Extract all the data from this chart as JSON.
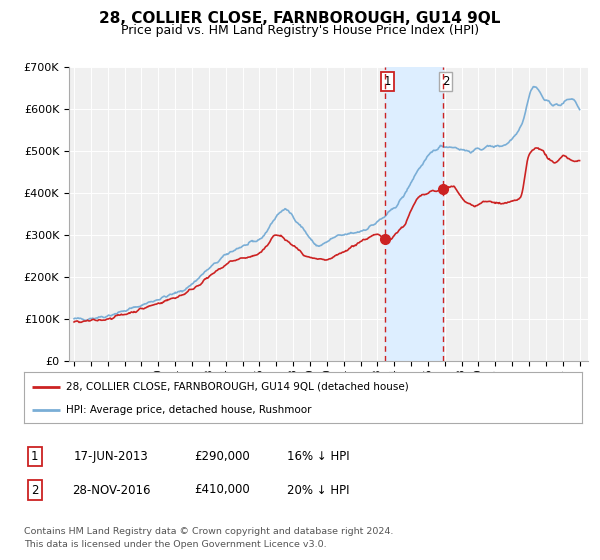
{
  "title": "28, COLLIER CLOSE, FARNBOROUGH, GU14 9QL",
  "subtitle": "Price paid vs. HM Land Registry's House Price Index (HPI)",
  "title_fontsize": 11,
  "subtitle_fontsize": 9,
  "ylim": [
    0,
    700000
  ],
  "yticks": [
    0,
    100000,
    200000,
    300000,
    400000,
    500000,
    600000,
    700000
  ],
  "ytick_labels": [
    "£0",
    "£100K",
    "£200K",
    "£300K",
    "£400K",
    "£500K",
    "£600K",
    "£700K"
  ],
  "xlim_start": 1994.7,
  "xlim_end": 2025.5,
  "sale1_date": 2013.46,
  "sale1_price": 290000,
  "sale1_label": "1",
  "sale2_date": 2016.91,
  "sale2_price": 410000,
  "sale2_label": "2",
  "hpi_color": "#7aaed6",
  "price_color": "#cc2222",
  "sale_dot_color": "#cc2222",
  "shaded_region_color": "#ddeeff",
  "legend_label1": "28, COLLIER CLOSE, FARNBOROUGH, GU14 9QL (detached house)",
  "legend_label2": "HPI: Average price, detached house, Rushmoor",
  "table_row1": [
    "1",
    "17-JUN-2013",
    "£290,000",
    "16% ↓ HPI"
  ],
  "table_row2": [
    "2",
    "28-NOV-2016",
    "£410,000",
    "20% ↓ HPI"
  ],
  "footer1": "Contains HM Land Registry data © Crown copyright and database right 2024.",
  "footer2": "This data is licensed under the Open Government Licence v3.0.",
  "background_color": "#ffffff",
  "plot_bg_color": "#f0f0f0"
}
